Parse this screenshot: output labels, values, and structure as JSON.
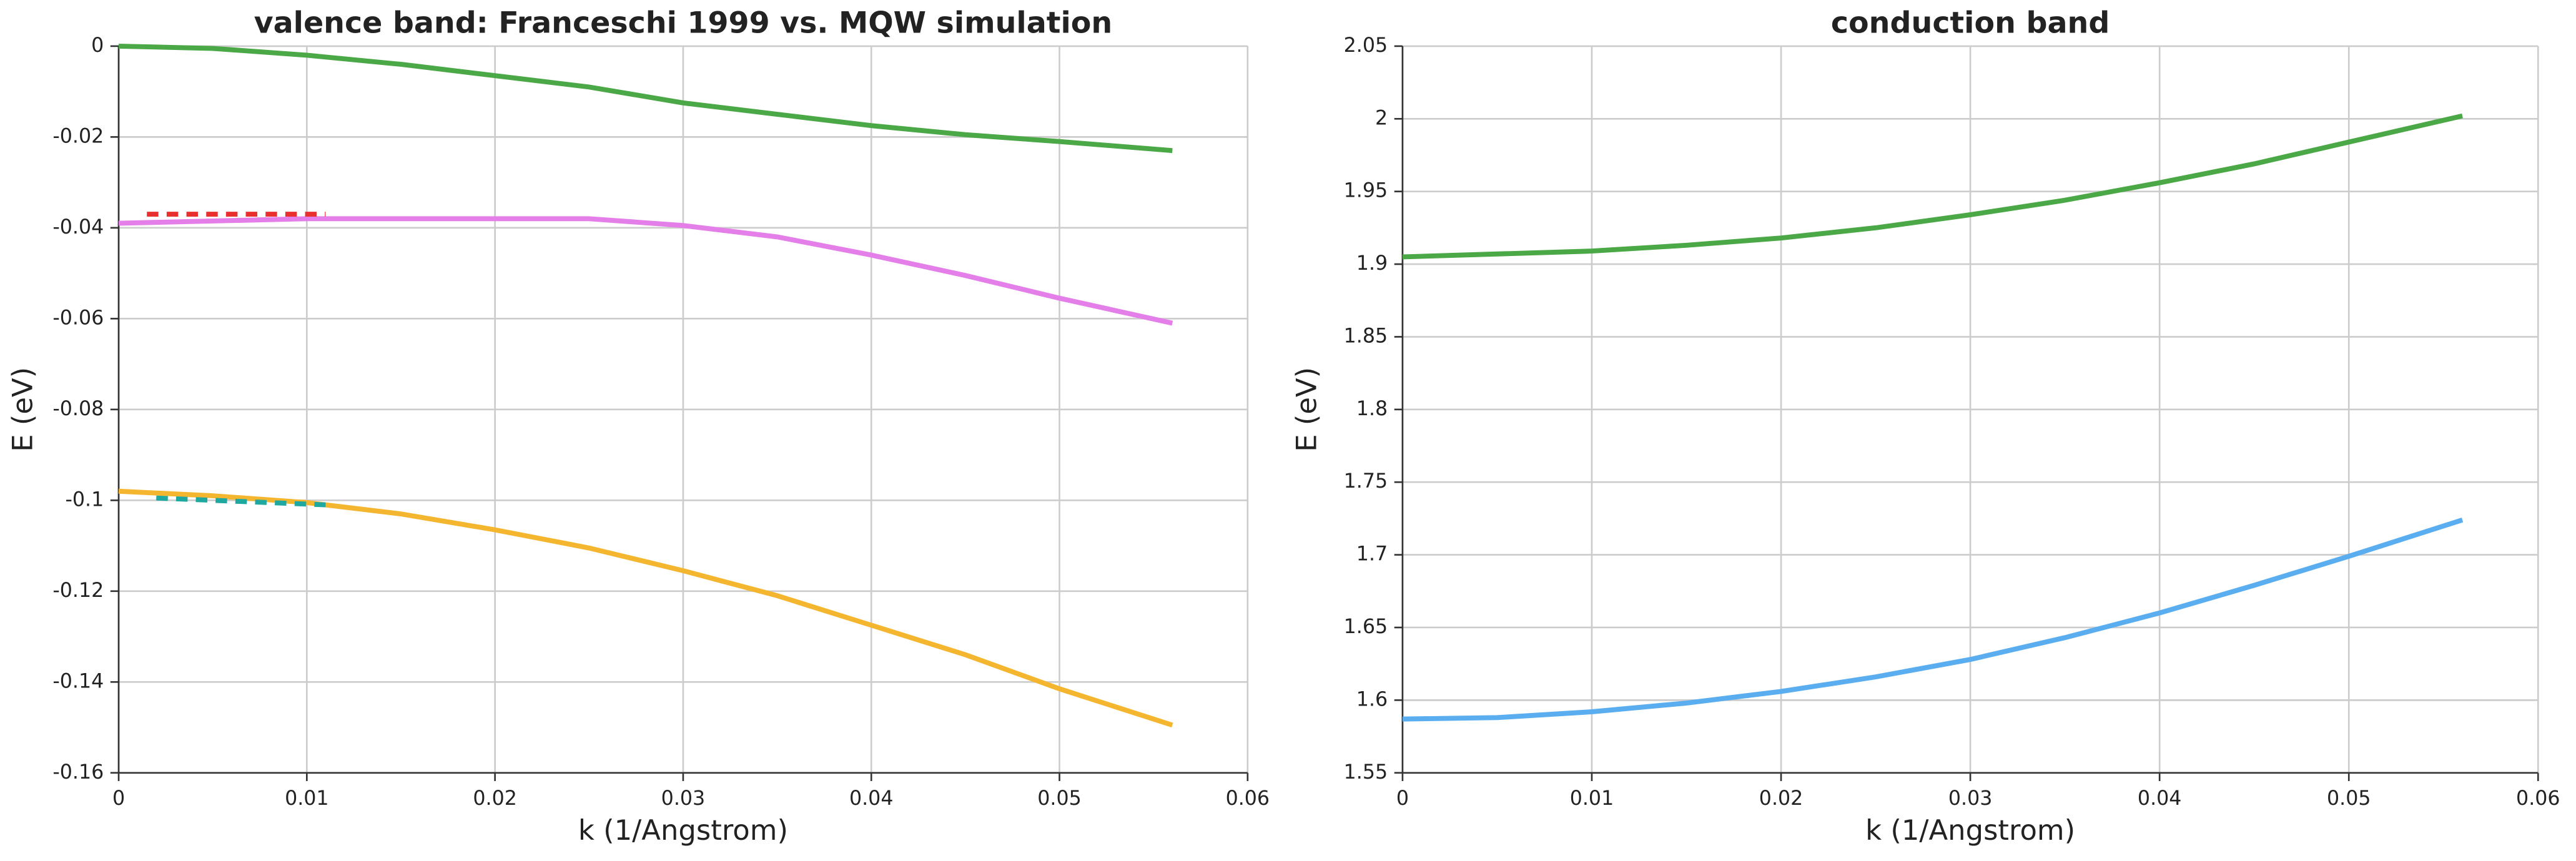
{
  "chart_data": [
    {
      "type": "line",
      "title": "valence band: Franceschi 1999 vs. MQW simulation",
      "xlabel": "k (1/Angstrom)",
      "ylabel": "E (eV)",
      "xlim": [
        0,
        0.06
      ],
      "xticks": [
        0,
        0.01,
        0.02,
        0.03,
        0.04,
        0.05,
        0.06
      ],
      "ylim": [
        -0.16,
        0
      ],
      "yticks": [
        0,
        -0.02,
        -0.04,
        -0.06,
        -0.08,
        -0.1,
        -0.12,
        -0.14,
        -0.16
      ],
      "grid": true,
      "series": [
        {
          "color": "#4ba846",
          "dashed": false,
          "x": [
            0,
            0.005,
            0.01,
            0.015,
            0.02,
            0.025,
            0.03,
            0.035,
            0.04,
            0.045,
            0.05,
            0.056
          ],
          "values": [
            0,
            -0.0005,
            -0.002,
            -0.004,
            -0.0065,
            -0.009,
            -0.0125,
            -0.015,
            -0.0175,
            -0.0195,
            -0.021,
            -0.023
          ]
        },
        {
          "color": "#e47ee8",
          "dashed": false,
          "x": [
            0,
            0.005,
            0.01,
            0.015,
            0.02,
            0.025,
            0.03,
            0.035,
            0.04,
            0.045,
            0.05,
            0.056
          ],
          "values": [
            -0.039,
            -0.0385,
            -0.038,
            -0.038,
            -0.038,
            -0.038,
            -0.0395,
            -0.042,
            -0.046,
            -0.0505,
            -0.0555,
            -0.061
          ]
        },
        {
          "color": "#f5b62f",
          "dashed": false,
          "x": [
            0,
            0.005,
            0.01,
            0.015,
            0.02,
            0.025,
            0.03,
            0.035,
            0.04,
            0.045,
            0.05,
            0.056
          ],
          "values": [
            -0.098,
            -0.099,
            -0.1005,
            -0.103,
            -0.1065,
            -0.1105,
            -0.1155,
            -0.121,
            -0.1275,
            -0.134,
            -0.1415,
            -0.1495
          ]
        },
        {
          "color": "#e8302e",
          "dashed": true,
          "x": [
            0.0015,
            0.005,
            0.008,
            0.011
          ],
          "values": [
            -0.037,
            -0.037,
            -0.037,
            -0.037
          ]
        },
        {
          "color": "#1ea8a0",
          "dashed": true,
          "x": [
            0.002,
            0.005,
            0.008,
            0.011
          ],
          "values": [
            -0.0995,
            -0.1,
            -0.1005,
            -0.101
          ]
        }
      ]
    },
    {
      "type": "line",
      "title": "conduction band",
      "xlabel": "k (1/Angstrom)",
      "ylabel": "E (eV)",
      "xlim": [
        0,
        0.06
      ],
      "xticks": [
        0,
        0.01,
        0.02,
        0.03,
        0.04,
        0.05,
        0.06
      ],
      "ylim": [
        1.55,
        2.05
      ],
      "yticks": [
        1.55,
        1.6,
        1.65,
        1.7,
        1.75,
        1.8,
        1.85,
        1.9,
        1.95,
        2,
        2.05
      ],
      "grid": true,
      "series": [
        {
          "color": "#4ba846",
          "dashed": false,
          "x": [
            0,
            0.005,
            0.01,
            0.015,
            0.02,
            0.025,
            0.03,
            0.035,
            0.04,
            0.045,
            0.05,
            0.056
          ],
          "values": [
            1.905,
            1.907,
            1.909,
            1.913,
            1.918,
            1.925,
            1.934,
            1.944,
            1.956,
            1.969,
            1.984,
            2.002
          ]
        },
        {
          "color": "#5aaef0",
          "dashed": false,
          "x": [
            0,
            0.005,
            0.01,
            0.015,
            0.02,
            0.025,
            0.03,
            0.035,
            0.04,
            0.045,
            0.05,
            0.056
          ],
          "values": [
            1.587,
            1.588,
            1.592,
            1.598,
            1.606,
            1.616,
            1.628,
            1.643,
            1.66,
            1.679,
            1.699,
            1.724
          ]
        }
      ]
    }
  ]
}
